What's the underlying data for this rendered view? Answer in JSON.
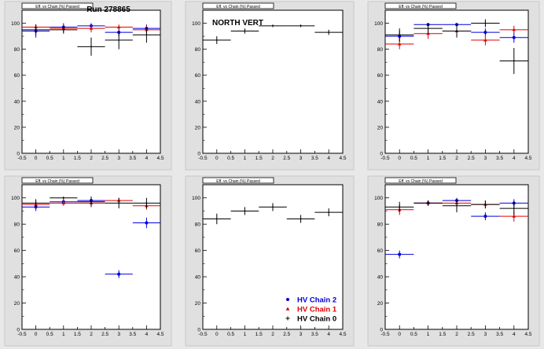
{
  "run_label": "Run 278865",
  "colors": {
    "hv2": "#0000dd",
    "hv1": "#e00000",
    "hv0": "#000000",
    "frame": "#000000",
    "panel_bg": "#e0e0e0",
    "plot_bg": "#ffffff"
  },
  "chart_data": [
    {
      "type": "scatter",
      "title": "",
      "histo_title": "Eff. vs Chain (%) Passed",
      "annotation": "Run 278865",
      "xticks": [
        "-0.5",
        "0",
        "0.5",
        "1",
        "1.5",
        "2",
        "2.5",
        "3",
        "3.5",
        "4",
        "4.5"
      ],
      "yticks": [
        "0",
        "20",
        "40",
        "60",
        "80",
        "100"
      ],
      "xlim": [
        -0.5,
        4.5
      ],
      "ylim": [
        0,
        110
      ],
      "series": [
        {
          "key": "hv2",
          "x": [
            0,
            1,
            2,
            3,
            4
          ],
          "y": [
            94,
            97,
            98,
            93,
            96
          ],
          "yerr": [
            5,
            3,
            2,
            3,
            3
          ]
        },
        {
          "key": "hv1",
          "x": [
            0,
            1,
            2,
            3,
            4
          ],
          "y": [
            97,
            96,
            96,
            97,
            95
          ],
          "yerr": [
            2,
            3,
            3,
            2,
            3
          ]
        },
        {
          "key": "hv0",
          "x": [
            0,
            1,
            2,
            3,
            4
          ],
          "y": [
            95,
            95,
            82,
            87,
            91
          ],
          "yerr": [
            4,
            3,
            7,
            7,
            6
          ]
        }
      ]
    },
    {
      "type": "scatter",
      "title": "",
      "histo_title": "Eff. vs Chain (%) Passed",
      "annotation": "NORTH VERT",
      "xticks": [
        "-0.5",
        "0",
        "0.5",
        "1",
        "1.5",
        "2",
        "2.5",
        "3",
        "3.5",
        "4",
        "4.5"
      ],
      "yticks": [
        "0",
        "20",
        "40",
        "60",
        "80",
        "100"
      ],
      "xlim": [
        -0.5,
        4.5
      ],
      "ylim": [
        0,
        110
      ],
      "series": [
        {
          "key": "hv0",
          "x": [
            0,
            1,
            2,
            3,
            4
          ],
          "y": [
            87,
            94,
            98,
            98,
            93
          ],
          "yerr": [
            3,
            2,
            1,
            1,
            2
          ]
        }
      ]
    },
    {
      "type": "scatter",
      "title": "",
      "histo_title": "Eff. vs Chain (%) Passed",
      "annotation": "",
      "xticks": [
        "-0.5",
        "0",
        "0.5",
        "1",
        "1.5",
        "2",
        "2.5",
        "3",
        "3.5",
        "4",
        "4.5"
      ],
      "yticks": [
        "0",
        "20",
        "40",
        "60",
        "80",
        "100"
      ],
      "xlim": [
        -0.5,
        4.5
      ],
      "ylim": [
        0,
        110
      ],
      "series": [
        {
          "key": "hv2",
          "x": [
            0,
            1,
            2,
            3,
            4
          ],
          "y": [
            90,
            99,
            99,
            93,
            89
          ],
          "yerr": [
            4,
            1,
            1,
            3,
            4
          ]
        },
        {
          "key": "hv1",
          "x": [
            0,
            1,
            2,
            3,
            4
          ],
          "y": [
            84,
            92,
            94,
            87,
            95
          ],
          "yerr": [
            4,
            4,
            4,
            4,
            3
          ]
        },
        {
          "key": "hv0",
          "x": [
            0,
            1,
            2,
            3,
            4
          ],
          "y": [
            91,
            96,
            94,
            100,
            71
          ],
          "yerr": [
            5,
            4,
            5,
            3,
            10
          ]
        }
      ]
    },
    {
      "type": "scatter",
      "title": "",
      "histo_title": "Eff. vs Chain (%) Passed",
      "annotation": "",
      "xticks": [
        "-0.5",
        "0",
        "0.5",
        "1",
        "1.5",
        "2",
        "2.5",
        "3",
        "3.5",
        "4",
        "4.5"
      ],
      "yticks": [
        "0",
        "20",
        "40",
        "60",
        "80",
        "100"
      ],
      "xlim": [
        -0.5,
        4.5
      ],
      "ylim": [
        0,
        110
      ],
      "series": [
        {
          "key": "hv2",
          "x": [
            0,
            1,
            2,
            3,
            4
          ],
          "y": [
            93,
            97,
            98,
            42,
            81
          ],
          "yerr": [
            3,
            2,
            2,
            3,
            4
          ]
        },
        {
          "key": "hv1",
          "x": [
            0,
            1,
            2,
            3,
            4
          ],
          "y": [
            95,
            96,
            96,
            98,
            94
          ],
          "yerr": [
            3,
            2,
            3,
            2,
            3
          ]
        },
        {
          "key": "hv0",
          "x": [
            0,
            1,
            2,
            3,
            4
          ],
          "y": [
            96,
            100,
            97,
            96,
            96
          ],
          "yerr": [
            3,
            1,
            4,
            4,
            4
          ]
        }
      ]
    },
    {
      "type": "scatter",
      "title": "",
      "histo_title": "Eff. vs Chain (%) Passed",
      "annotation": "",
      "xticks": [
        "-0.5",
        "0",
        "0.5",
        "1",
        "1.5",
        "2",
        "2.5",
        "3",
        "3.5",
        "4",
        "4.5"
      ],
      "yticks": [
        "0",
        "20",
        "40",
        "60",
        "80",
        "100"
      ],
      "xlim": [
        -0.5,
        4.5
      ],
      "ylim": [
        0,
        110
      ],
      "legend": [
        {
          "key": "hv2",
          "label": "HV Chain 2"
        },
        {
          "key": "hv1",
          "label": "HV Chain 1"
        },
        {
          "key": "hv0",
          "label": "HV Chain 0"
        }
      ],
      "legend_position": "bottom-right",
      "series": [
        {
          "key": "hv0",
          "x": [
            0,
            1,
            2,
            3,
            4
          ],
          "y": [
            84,
            90,
            93,
            84,
            89
          ],
          "yerr": [
            4,
            3,
            3,
            3,
            3
          ]
        }
      ]
    },
    {
      "type": "scatter",
      "title": "",
      "histo_title": "Eff. vs Chain (%) Passed",
      "annotation": "",
      "xticks": [
        "-0.5",
        "0",
        "0.5",
        "1",
        "1.5",
        "2",
        "2.5",
        "3",
        "3.5",
        "4",
        "4.5"
      ],
      "yticks": [
        "0",
        "20",
        "40",
        "60",
        "80",
        "100"
      ],
      "xlim": [
        -0.5,
        4.5
      ],
      "ylim": [
        0,
        110
      ],
      "series": [
        {
          "key": "hv2",
          "x": [
            0,
            1,
            2,
            3,
            4
          ],
          "y": [
            57,
            96,
            98,
            86,
            96
          ],
          "yerr": [
            3,
            2,
            2,
            3,
            3
          ]
        },
        {
          "key": "hv1",
          "x": [
            0,
            1,
            2,
            3,
            4
          ],
          "y": [
            91,
            96,
            96,
            95,
            86
          ],
          "yerr": [
            4,
            2,
            3,
            3,
            4
          ]
        },
        {
          "key": "hv0",
          "x": [
            0,
            1,
            2,
            3,
            4
          ],
          "y": [
            93,
            96,
            94,
            95,
            92
          ],
          "yerr": [
            4,
            2,
            5,
            3,
            5
          ]
        }
      ]
    }
  ]
}
